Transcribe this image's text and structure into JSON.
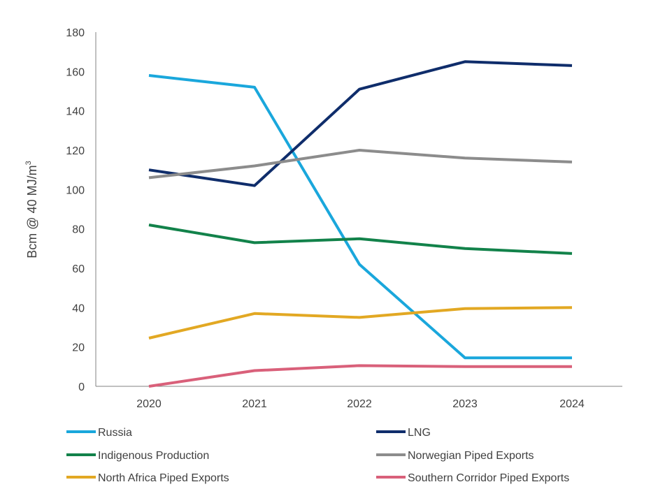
{
  "chart_data": {
    "type": "line",
    "title": "",
    "xlabel": "",
    "ylabel": "Bcm @ 40 MJ/m",
    "ylabel_superscript": "3",
    "x": [
      "2020",
      "2021",
      "2022",
      "2023",
      "2024"
    ],
    "ylim": [
      0,
      180
    ],
    "yticks": [
      0,
      20,
      40,
      60,
      80,
      100,
      120,
      140,
      160,
      180
    ],
    "grid": false,
    "legend_position": "bottom",
    "series": [
      {
        "name": "Russia",
        "color": "#1aa7dc",
        "values": [
          158,
          152,
          62,
          14.5,
          14.5
        ]
      },
      {
        "name": "LNG",
        "color": "#0f2d6b",
        "values": [
          110,
          102,
          151,
          165,
          163
        ]
      },
      {
        "name": "Indigenous Production",
        "color": "#12824a",
        "values": [
          82,
          73,
          75,
          70,
          67.5
        ]
      },
      {
        "name": "Norwegian Piped Exports",
        "color": "#8c8c8c",
        "values": [
          106,
          112,
          120,
          116,
          114
        ]
      },
      {
        "name": "North Africa Piped Exports",
        "color": "#e2a823",
        "values": [
          24.5,
          37,
          35,
          39.5,
          40
        ]
      },
      {
        "name": "Southern Corridor Piped Exports",
        "color": "#d9607a",
        "values": [
          0,
          8,
          10.5,
          10,
          10
        ]
      }
    ]
  }
}
